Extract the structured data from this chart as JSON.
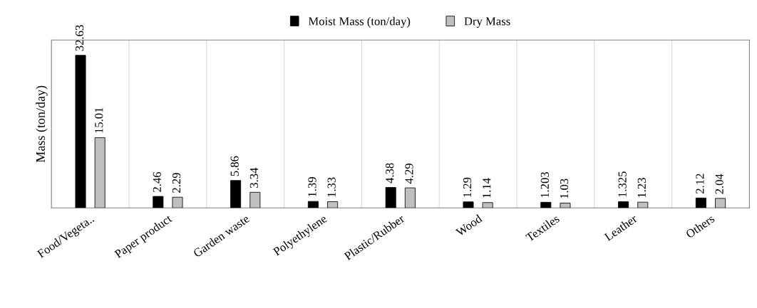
{
  "chart_data": {
    "type": "bar",
    "ylabel": "Mass (ton/day)",
    "categories": [
      "Food/Vegeta..",
      "Paper product",
      "Garden waste",
      "Polyethylene",
      "Plastic/Rubber",
      "Wood",
      "Textiles",
      "Leather",
      "Others"
    ],
    "series": [
      {
        "name": "Moist Mass (ton/day)",
        "color": "#000000",
        "values": [
          32.63,
          2.46,
          5.86,
          1.39,
          4.38,
          1.29,
          1.203,
          1.325,
          2.12
        ]
      },
      {
        "name": "Dry Mass",
        "color": "#bfbfbf",
        "values": [
          15.01,
          2.29,
          3.34,
          1.33,
          4.29,
          1.14,
          1.03,
          1.23,
          2.04
        ]
      }
    ],
    "data_labels": true,
    "grid": "x",
    "legend": "top"
  }
}
